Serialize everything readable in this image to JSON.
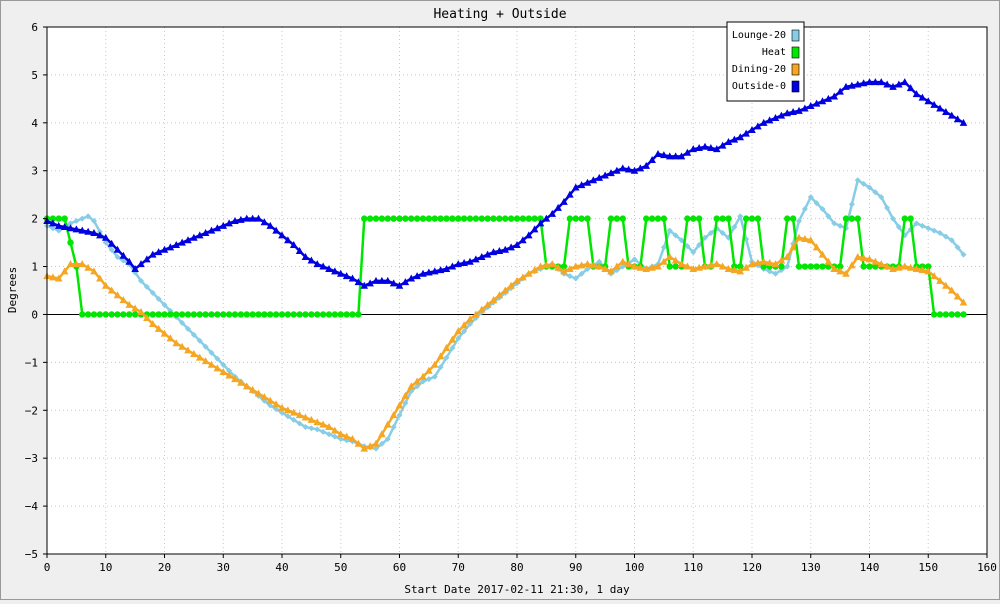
{
  "chart_data": {
    "type": "line",
    "title": "Heating + Outside",
    "xlabel": "Start Date 2017-02-11 21:30, 1 day",
    "ylabel": "Degrees",
    "xlim": [
      0,
      160
    ],
    "ylim": [
      -5,
      6
    ],
    "xticks": [
      0,
      10,
      20,
      30,
      40,
      50,
      60,
      70,
      80,
      90,
      100,
      110,
      120,
      130,
      140,
      150,
      160
    ],
    "yticks": [
      -5,
      -4,
      -3,
      -2,
      -1,
      0,
      1,
      2,
      3,
      4,
      5,
      6
    ],
    "grid": true,
    "legend_position": "top-right",
    "series": [
      {
        "name": "Lounge-20",
        "color": "#87cde6",
        "marker": "diamond",
        "points": [
          [
            0,
            1.85
          ],
          [
            2,
            1.75
          ],
          [
            4,
            1.9
          ],
          [
            6,
            2.0
          ],
          [
            7,
            2.05
          ],
          [
            8,
            1.95
          ],
          [
            10,
            1.5
          ],
          [
            12,
            1.2
          ],
          [
            14,
            1.05
          ],
          [
            16,
            0.7
          ],
          [
            18,
            0.45
          ],
          [
            20,
            0.2
          ],
          [
            22,
            -0.05
          ],
          [
            24,
            -0.3
          ],
          [
            26,
            -0.55
          ],
          [
            28,
            -0.8
          ],
          [
            30,
            -1.05
          ],
          [
            32,
            -1.3
          ],
          [
            34,
            -1.5
          ],
          [
            36,
            -1.7
          ],
          [
            38,
            -1.9
          ],
          [
            40,
            -2.05
          ],
          [
            42,
            -2.2
          ],
          [
            44,
            -2.35
          ],
          [
            46,
            -2.4
          ],
          [
            48,
            -2.5
          ],
          [
            50,
            -2.6
          ],
          [
            52,
            -2.65
          ],
          [
            54,
            -2.75
          ],
          [
            56,
            -2.8
          ],
          [
            58,
            -2.6
          ],
          [
            60,
            -2.1
          ],
          [
            62,
            -1.6
          ],
          [
            64,
            -1.4
          ],
          [
            66,
            -1.3
          ],
          [
            68,
            -0.9
          ],
          [
            70,
            -0.5
          ],
          [
            72,
            -0.2
          ],
          [
            74,
            0.05
          ],
          [
            76,
            0.25
          ],
          [
            78,
            0.45
          ],
          [
            80,
            0.65
          ],
          [
            82,
            0.85
          ],
          [
            84,
            0.95
          ],
          [
            86,
            1.05
          ],
          [
            88,
            0.85
          ],
          [
            90,
            0.75
          ],
          [
            92,
            0.95
          ],
          [
            94,
            1.1
          ],
          [
            96,
            0.85
          ],
          [
            98,
            1.0
          ],
          [
            100,
            1.15
          ],
          [
            102,
            0.95
          ],
          [
            104,
            1.05
          ],
          [
            106,
            1.75
          ],
          [
            108,
            1.55
          ],
          [
            110,
            1.3
          ],
          [
            112,
            1.6
          ],
          [
            114,
            1.8
          ],
          [
            116,
            1.6
          ],
          [
            118,
            2.05
          ],
          [
            120,
            1.1
          ],
          [
            122,
            0.95
          ],
          [
            124,
            0.85
          ],
          [
            126,
            1.0
          ],
          [
            128,
            1.95
          ],
          [
            130,
            2.45
          ],
          [
            132,
            2.2
          ],
          [
            134,
            1.9
          ],
          [
            136,
            1.8
          ],
          [
            138,
            2.8
          ],
          [
            140,
            2.65
          ],
          [
            142,
            2.45
          ],
          [
            144,
            2.0
          ],
          [
            146,
            1.65
          ],
          [
            148,
            1.9
          ],
          [
            150,
            1.8
          ],
          [
            152,
            1.7
          ],
          [
            154,
            1.55
          ],
          [
            156,
            1.25
          ]
        ]
      },
      {
        "name": "Heat",
        "color": "#00e600",
        "marker": "circle",
        "points": [
          [
            0,
            2
          ],
          [
            3,
            2
          ],
          [
            5,
            1
          ],
          [
            6,
            0
          ],
          [
            53,
            0
          ],
          [
            54,
            2
          ],
          [
            84,
            2
          ],
          [
            85,
            1
          ],
          [
            88,
            1
          ],
          [
            89,
            2
          ],
          [
            92,
            2
          ],
          [
            93,
            1
          ],
          [
            95,
            1
          ],
          [
            96,
            2
          ],
          [
            98,
            2
          ],
          [
            99,
            1
          ],
          [
            101,
            1
          ],
          [
            102,
            2
          ],
          [
            105,
            2
          ],
          [
            106,
            1
          ],
          [
            108,
            1
          ],
          [
            109,
            2
          ],
          [
            111,
            2
          ],
          [
            112,
            1
          ],
          [
            113,
            1
          ],
          [
            114,
            2
          ],
          [
            116,
            2
          ],
          [
            117,
            1
          ],
          [
            118,
            1
          ],
          [
            119,
            2
          ],
          [
            121,
            2
          ],
          [
            122,
            1
          ],
          [
            125,
            1
          ],
          [
            126,
            2
          ],
          [
            127,
            2
          ],
          [
            128,
            1
          ],
          [
            135,
            1
          ],
          [
            136,
            2
          ],
          [
            138,
            2
          ],
          [
            139,
            1
          ],
          [
            145,
            1
          ],
          [
            146,
            2
          ],
          [
            147,
            2
          ],
          [
            148,
            1
          ],
          [
            150,
            1
          ],
          [
            151,
            0
          ],
          [
            156,
            0
          ]
        ]
      },
      {
        "name": "Dining-20",
        "color": "#f5a623",
        "marker": "triangle",
        "points": [
          [
            0,
            0.8
          ],
          [
            2,
            0.75
          ],
          [
            4,
            1.05
          ],
          [
            6,
            1.05
          ],
          [
            8,
            0.9
          ],
          [
            10,
            0.6
          ],
          [
            12,
            0.4
          ],
          [
            14,
            0.2
          ],
          [
            16,
            0.05
          ],
          [
            18,
            -0.2
          ],
          [
            20,
            -0.4
          ],
          [
            22,
            -0.6
          ],
          [
            24,
            -0.75
          ],
          [
            26,
            -0.9
          ],
          [
            28,
            -1.05
          ],
          [
            30,
            -1.2
          ],
          [
            32,
            -1.35
          ],
          [
            34,
            -1.5
          ],
          [
            36,
            -1.65
          ],
          [
            38,
            -1.8
          ],
          [
            40,
            -1.95
          ],
          [
            42,
            -2.05
          ],
          [
            44,
            -2.15
          ],
          [
            46,
            -2.25
          ],
          [
            48,
            -2.35
          ],
          [
            50,
            -2.5
          ],
          [
            52,
            -2.6
          ],
          [
            54,
            -2.8
          ],
          [
            56,
            -2.7
          ],
          [
            58,
            -2.3
          ],
          [
            60,
            -1.9
          ],
          [
            62,
            -1.5
          ],
          [
            64,
            -1.3
          ],
          [
            66,
            -1.05
          ],
          [
            68,
            -0.7
          ],
          [
            70,
            -0.35
          ],
          [
            72,
            -0.1
          ],
          [
            74,
            0.1
          ],
          [
            76,
            0.3
          ],
          [
            78,
            0.5
          ],
          [
            80,
            0.7
          ],
          [
            82,
            0.85
          ],
          [
            84,
            1.0
          ],
          [
            86,
            1.05
          ],
          [
            88,
            0.9
          ],
          [
            90,
            1.0
          ],
          [
            92,
            1.05
          ],
          [
            94,
            1.0
          ],
          [
            96,
            0.9
          ],
          [
            98,
            1.1
          ],
          [
            100,
            1.0
          ],
          [
            102,
            0.95
          ],
          [
            104,
            1.0
          ],
          [
            106,
            1.2
          ],
          [
            108,
            1.05
          ],
          [
            110,
            0.95
          ],
          [
            112,
            1.0
          ],
          [
            114,
            1.05
          ],
          [
            116,
            0.95
          ],
          [
            118,
            0.9
          ],
          [
            120,
            1.05
          ],
          [
            122,
            1.1
          ],
          [
            124,
            1.05
          ],
          [
            126,
            1.2
          ],
          [
            128,
            1.6
          ],
          [
            130,
            1.55
          ],
          [
            132,
            1.25
          ],
          [
            134,
            0.95
          ],
          [
            136,
            0.85
          ],
          [
            138,
            1.2
          ],
          [
            140,
            1.15
          ],
          [
            142,
            1.05
          ],
          [
            144,
            0.95
          ],
          [
            146,
            1.0
          ],
          [
            148,
            0.95
          ],
          [
            150,
            0.9
          ],
          [
            152,
            0.7
          ],
          [
            154,
            0.5
          ],
          [
            156,
            0.25
          ]
        ]
      },
      {
        "name": "Outside-0",
        "color": "#0000e0",
        "marker": "triangle",
        "points": [
          [
            0,
            1.95
          ],
          [
            2,
            1.85
          ],
          [
            4,
            1.8
          ],
          [
            6,
            1.75
          ],
          [
            8,
            1.7
          ],
          [
            10,
            1.6
          ],
          [
            12,
            1.35
          ],
          [
            14,
            1.1
          ],
          [
            15,
            0.95
          ],
          [
            16,
            1.05
          ],
          [
            18,
            1.25
          ],
          [
            20,
            1.35
          ],
          [
            22,
            1.45
          ],
          [
            24,
            1.55
          ],
          [
            26,
            1.65
          ],
          [
            28,
            1.75
          ],
          [
            30,
            1.85
          ],
          [
            32,
            1.95
          ],
          [
            34,
            2.0
          ],
          [
            36,
            2.0
          ],
          [
            38,
            1.85
          ],
          [
            40,
            1.65
          ],
          [
            42,
            1.45
          ],
          [
            44,
            1.2
          ],
          [
            46,
            1.05
          ],
          [
            48,
            0.95
          ],
          [
            50,
            0.85
          ],
          [
            52,
            0.75
          ],
          [
            54,
            0.6
          ],
          [
            56,
            0.7
          ],
          [
            58,
            0.7
          ],
          [
            60,
            0.6
          ],
          [
            62,
            0.75
          ],
          [
            64,
            0.85
          ],
          [
            66,
            0.9
          ],
          [
            68,
            0.95
          ],
          [
            70,
            1.05
          ],
          [
            72,
            1.1
          ],
          [
            74,
            1.2
          ],
          [
            76,
            1.3
          ],
          [
            78,
            1.35
          ],
          [
            80,
            1.45
          ],
          [
            82,
            1.65
          ],
          [
            84,
            1.9
          ],
          [
            86,
            2.1
          ],
          [
            88,
            2.35
          ],
          [
            90,
            2.65
          ],
          [
            92,
            2.75
          ],
          [
            94,
            2.85
          ],
          [
            96,
            2.95
          ],
          [
            98,
            3.05
          ],
          [
            100,
            3.0
          ],
          [
            102,
            3.1
          ],
          [
            104,
            3.35
          ],
          [
            106,
            3.3
          ],
          [
            108,
            3.3
          ],
          [
            110,
            3.45
          ],
          [
            112,
            3.5
          ],
          [
            114,
            3.45
          ],
          [
            116,
            3.6
          ],
          [
            118,
            3.7
          ],
          [
            120,
            3.85
          ],
          [
            122,
            4.0
          ],
          [
            124,
            4.1
          ],
          [
            126,
            4.2
          ],
          [
            128,
            4.25
          ],
          [
            130,
            4.35
          ],
          [
            132,
            4.45
          ],
          [
            134,
            4.55
          ],
          [
            136,
            4.75
          ],
          [
            138,
            4.8
          ],
          [
            140,
            4.85
          ],
          [
            142,
            4.85
          ],
          [
            144,
            4.75
          ],
          [
            146,
            4.85
          ],
          [
            148,
            4.6
          ],
          [
            150,
            4.45
          ],
          [
            152,
            4.3
          ],
          [
            154,
            4.15
          ],
          [
            156,
            4.0
          ]
        ]
      }
    ]
  }
}
